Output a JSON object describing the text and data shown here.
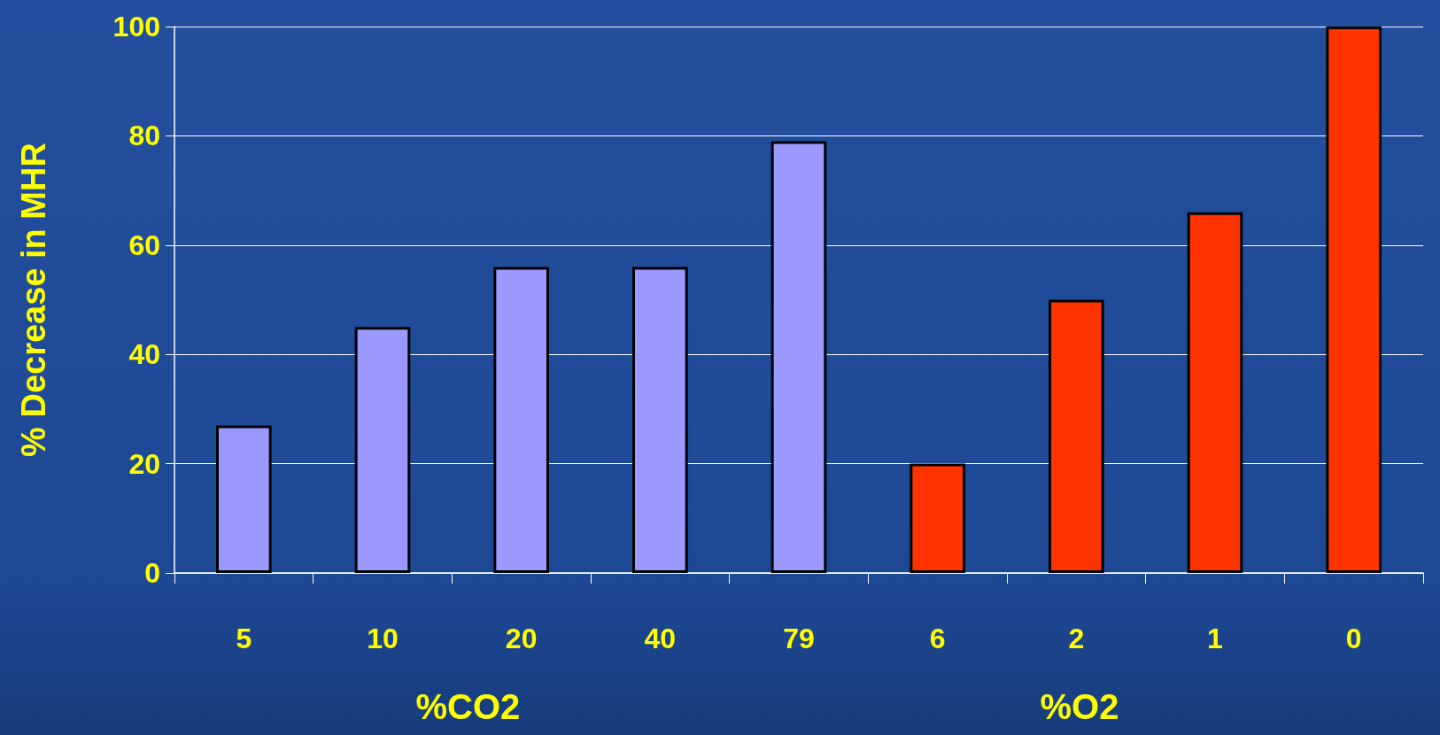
{
  "chart_data": {
    "type": "bar",
    "ylabel": "% Decrease in MHR",
    "categories": [
      "5",
      "10",
      "20",
      "40",
      "79",
      "6",
      "2",
      "1",
      "0"
    ],
    "values": [
      27,
      45,
      56,
      56,
      79,
      20,
      50,
      66,
      100
    ],
    "colors": [
      "#9999ff",
      "#9999ff",
      "#9999ff",
      "#9999ff",
      "#9999ff",
      "#ff3300",
      "#ff3300",
      "#ff3300",
      "#ff3300"
    ],
    "ylim": [
      0,
      100
    ],
    "yticks": [
      0,
      20,
      40,
      60,
      80,
      100
    ],
    "grid": "y",
    "annotations": [
      "%CO2",
      "%O2"
    ]
  }
}
